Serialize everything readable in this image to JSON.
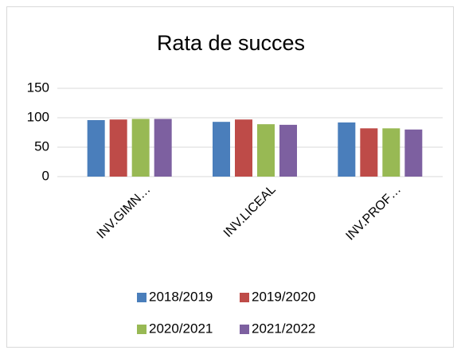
{
  "chart_data": {
    "type": "bar",
    "title": "Rata de succes",
    "categories": [
      "INV.GIMN…",
      "INV.LICEAL",
      "INV.PROF…"
    ],
    "series": [
      {
        "name": "2018/2019",
        "color": "#4a7ebb",
        "values": [
          96,
          93,
          92
        ]
      },
      {
        "name": "2019/2020",
        "color": "#be4b48",
        "values": [
          97,
          97,
          82
        ]
      },
      {
        "name": "2020/2021",
        "color": "#98b954",
        "values": [
          98,
          89,
          82
        ]
      },
      {
        "name": "2021/2022",
        "color": "#7d60a0",
        "values": [
          98,
          88,
          80
        ]
      }
    ],
    "ylim": [
      0,
      150
    ],
    "yticks": [
      0,
      50,
      100,
      150
    ],
    "grid": true,
    "legend": "bottom"
  }
}
